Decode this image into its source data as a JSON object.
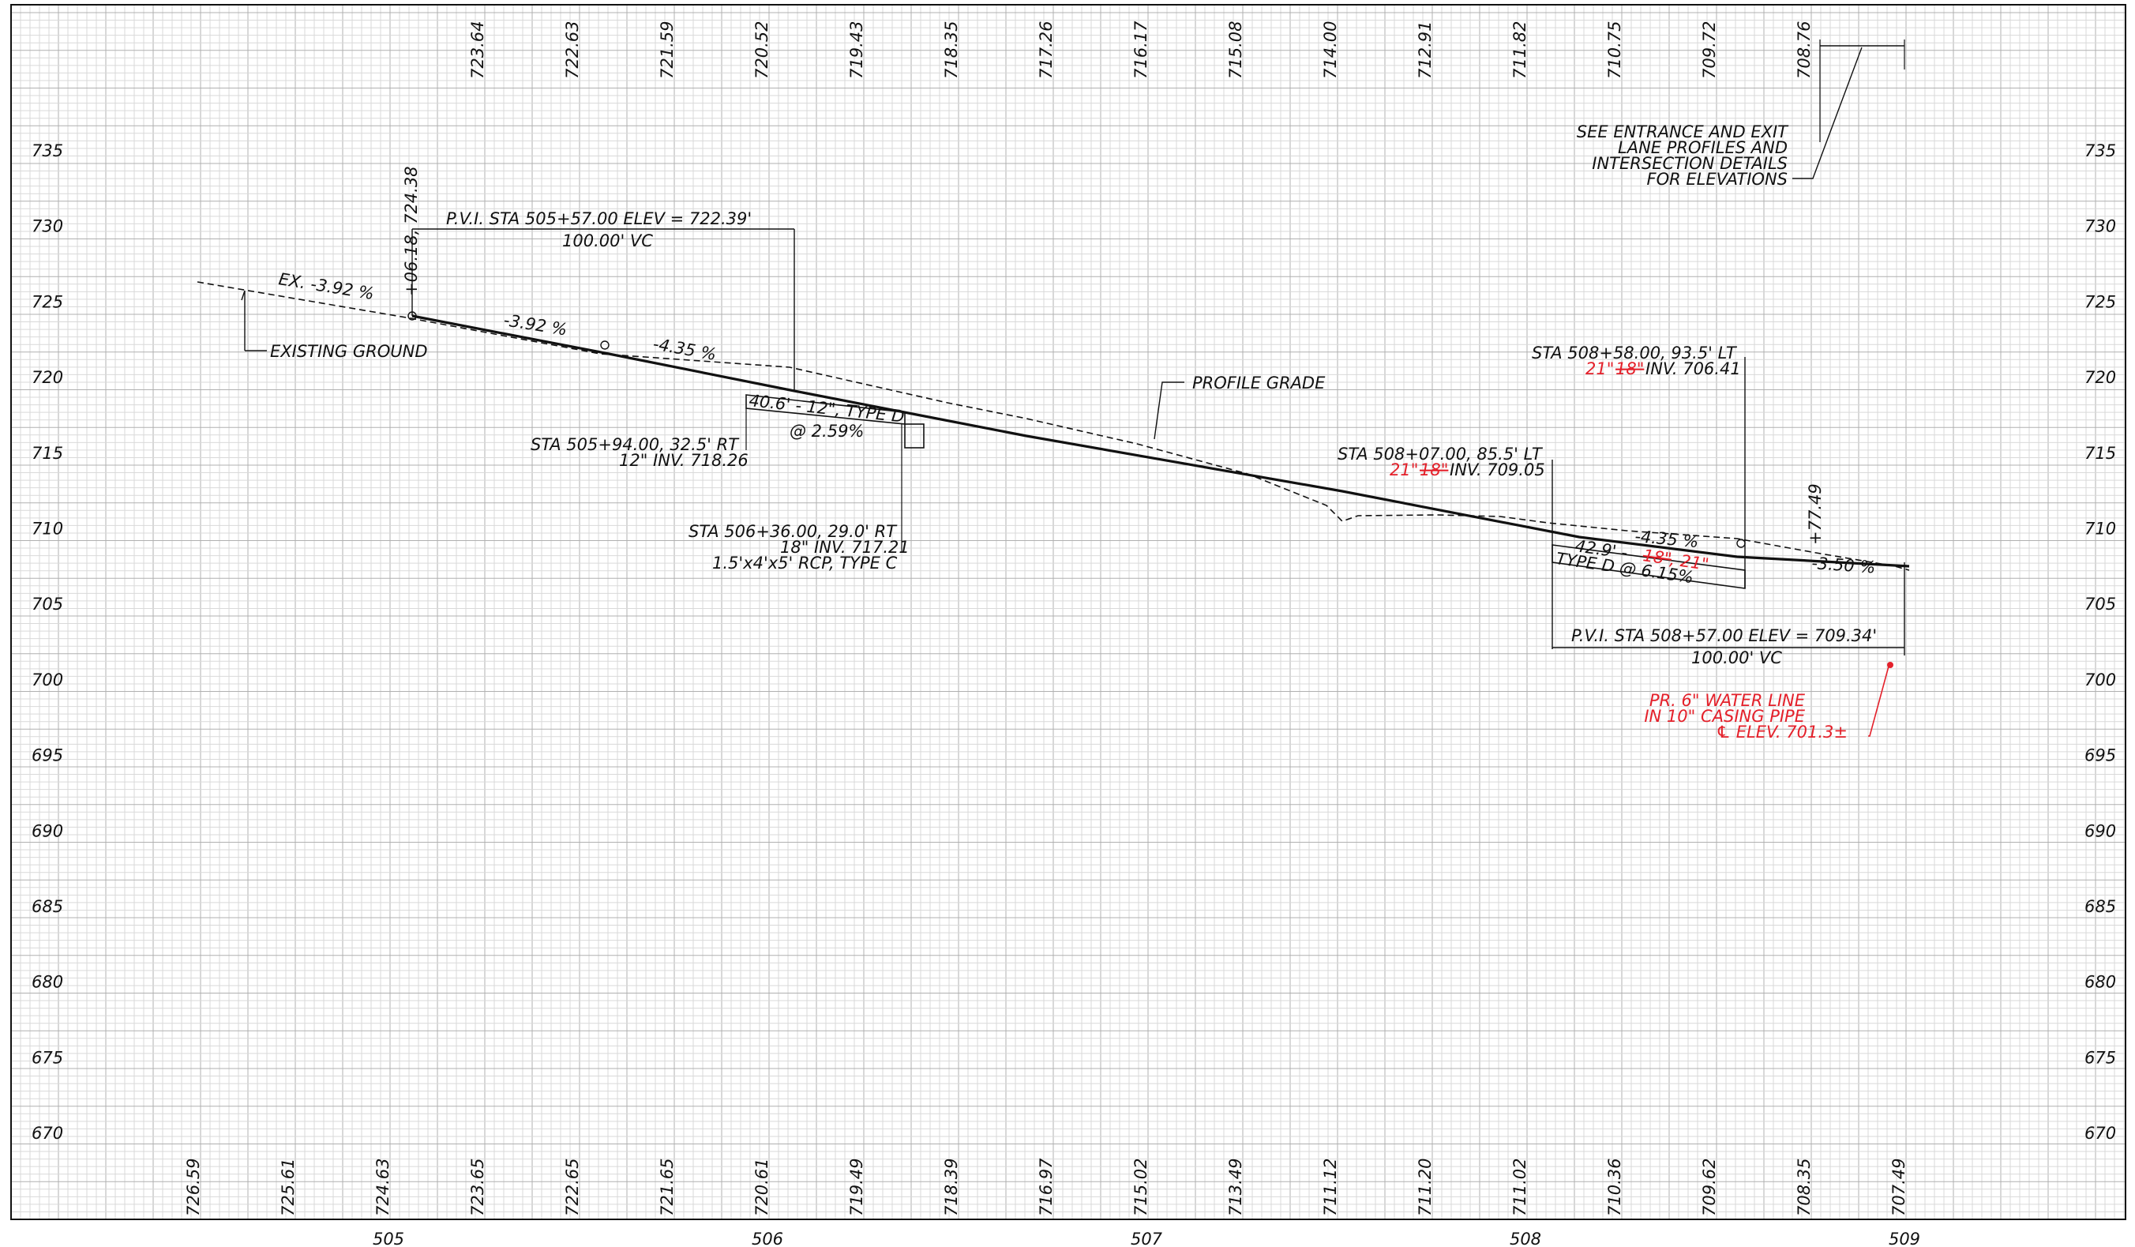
{
  "elevation_labels_left": [
    "735",
    "730",
    "725",
    "720",
    "715",
    "710",
    "705",
    "700",
    "695",
    "690",
    "685",
    "680",
    "675",
    "670"
  ],
  "elevation_labels_right": [
    "735",
    "730",
    "725",
    "720",
    "715",
    "710",
    "705",
    "700",
    "695",
    "690",
    "685",
    "680",
    "675",
    "670"
  ],
  "station_labels": [
    "505",
    "506",
    "507",
    "508",
    "509"
  ],
  "top_elevations": [
    "723.64",
    "722.63",
    "721.59",
    "720.52",
    "719.43",
    "718.35",
    "717.26",
    "716.17",
    "715.08",
    "714.00",
    "712.91",
    "711.82",
    "710.75",
    "709.72",
    "708.76"
  ],
  "bottom_elevations": [
    "726.59",
    "725.61",
    "724.63",
    "723.65",
    "722.65",
    "721.65",
    "720.61",
    "719.49",
    "718.39",
    "716.97",
    "715.02",
    "713.49",
    "711.12",
    "711.20",
    "711.02",
    "710.36",
    "709.62",
    "708.35",
    "707.49"
  ],
  "annotations": {
    "pvi1_sta": "P.V.I. STA 505+57.00   ELEV = 722.39'",
    "pvi1_vc": "100.00' VC",
    "sta_start": "+06.18, 724.38",
    "ex_grade": "EX. -3.92 %",
    "existing_ground": "EXISTING GROUND",
    "grade1": "-3.92 %",
    "grade2": "-4.35 %",
    "profile_grade": "PROFILE GRADE",
    "pipe1": "40.6' - 12\", TYPE D",
    "pipe1_slope": "@ 2.59%",
    "inlet1_line1": "STA 505+94.00, 32.5' RT",
    "inlet1_line2": "12\" INV. 718.26",
    "inlet2_line1": "STA 506+36.00, 29.0' RT",
    "inlet2_line2": "18\" INV. 717.21",
    "inlet2_line3": "1.5'x4'x5' RCP, TYPE C",
    "inlet3_line1": "STA 508+07.00, 85.5' LT",
    "inlet3_red": "21\"",
    "inlet3_strike": "18\"",
    "inlet3_inv": "INV. 709.05",
    "inlet4_line1": "STA 508+58.00, 93.5' LT",
    "inlet4_red": "21\"",
    "inlet4_strike": "18\"",
    "inlet4_inv": "INV. 706.41",
    "pipe2_a": "42.9' -",
    "pipe2_strike": "18\"",
    "pipe2_red": ", 21\"",
    "pipe2_b": "TYPE D @ 6.15%",
    "grade3": "-4.35 %",
    "grade4": "-3.50 %",
    "sta_end": "+77.49",
    "pvi2_sta": "P.V.I. STA 508+57.00   ELEV = 709.34'",
    "pvi2_vc": "100.00' VC",
    "note_line1": "SEE ENTRANCE AND EXIT",
    "note_line2": "LANE PROFILES AND",
    "note_line3": "INTERSECTION DETAILS",
    "note_line4": "FOR ELEVATIONS",
    "water_line1": "PR. 6\" WATER LINE",
    "water_line2": "IN 10\" CASING PIPE",
    "water_line3": "℄ ELEV. 701.3±"
  },
  "colors": {
    "grid_minor": "#d9d9d9",
    "grid_major": "#b0b0b0",
    "line": "#111111",
    "revision": "#e4202a"
  }
}
